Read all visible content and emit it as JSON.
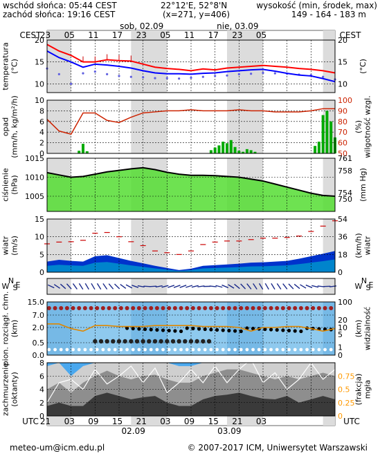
{
  "header": {
    "sunrise": "wschód słońca: 05:44 CEST",
    "sunset": "zachód słońca: 19:16 CEST",
    "coords": "22°12'E, 52°8'N",
    "grid_point": "(x=271,  y=406)",
    "altitude_title": "wysokość (min, środek, max)",
    "altitude_values": "149 - 164 - 183 m"
  },
  "top_axis": {
    "tz": "CEST",
    "hour_ticks": [
      "23",
      "05",
      "11",
      "17",
      "23",
      "05",
      "11",
      "17",
      "23",
      "05"
    ],
    "dates": [
      "sob, 02.09",
      "nie, 03.09"
    ]
  },
  "bottom_axis": {
    "tz": "UTC",
    "hour_ticks": [
      "21",
      "03",
      "09",
      "15",
      "21",
      "03",
      "09",
      "15",
      "21",
      "03"
    ],
    "dates": [
      "02.09",
      "03.09"
    ]
  },
  "footer": {
    "email": "meteo-um@icm.edu.pl",
    "copyright": "© 2007-2017 ICM, Uniwersytet Warszawski"
  },
  "colors": {
    "temp_max": "#ff0000",
    "temp_mean": "#0000ff",
    "dewpoint": "#6060e0",
    "precip": "#00aa00",
    "humidity": "#cc2200",
    "pressure_fill": "#55dd33",
    "pressure_line": "#000000",
    "wind_gust": "#cc0000",
    "wind_fill": "#0033cc",
    "cloud_base": "#a02020",
    "visibility": "#e08800",
    "fog": "#ff9900",
    "night_band": "#dcdcdc"
  },
  "chart_data": [
    {
      "type": "line",
      "panel": "temperature",
      "ylabel_left": "temperatura\n(°C)",
      "ylabel_right": "(°C)",
      "ylim": [
        8,
        20
      ],
      "yticks": [
        10,
        15,
        20
      ],
      "x_hours": [
        0,
        3,
        6,
        9,
        12,
        15,
        18,
        21,
        24,
        27,
        30,
        33,
        36,
        39,
        42,
        45,
        48,
        51,
        54,
        57,
        60,
        63,
        66,
        69,
        72
      ],
      "series": [
        {
          "key": "tmax",
          "values": [
            19.0,
            17.5,
            16.5,
            15.0,
            15.0,
            15.5,
            15.3,
            15.2,
            14.5,
            13.8,
            13.5,
            13.3,
            13.0,
            13.4,
            13.2,
            13.6,
            13.8,
            14.0,
            14.2,
            14.0,
            13.8,
            13.5,
            13.3,
            13.0,
            12.5
          ]
        },
        {
          "key": "tmean",
          "values": [
            17.5,
            16.0,
            15.0,
            13.8,
            14.5,
            14.3,
            14.0,
            13.6,
            13.0,
            12.5,
            12.3,
            12.3,
            12.2,
            12.4,
            12.5,
            12.8,
            13.0,
            13.2,
            13.3,
            12.9,
            12.4,
            12.0,
            11.8,
            11.2,
            10.5
          ]
        },
        {
          "key": "dewpoint",
          "values": [
            13.5,
            12.2,
            10.0,
            12.4,
            12.8,
            12.2,
            11.8,
            11.6,
            11.5,
            11.3,
            11.3,
            11.2,
            11.4,
            11.6,
            11.8,
            11.9,
            12.2,
            12.3,
            12.5,
            12.4,
            12.3,
            12.1,
            12.0,
            11.6,
            11.0
          ]
        }
      ]
    },
    {
      "type": "bar",
      "panel": "precipitation",
      "ylabel_left": "opad\n(mm/h, kg/m²/h)",
      "ylabel_right": "(%)\nwilgotność wzgl.",
      "ylim": [
        0,
        10
      ],
      "yticks": [
        0,
        2,
        4,
        6,
        8,
        10
      ],
      "y2lim": [
        50,
        100
      ],
      "y2ticks": [
        50,
        60,
        70,
        80,
        90,
        100
      ],
      "precip_x_hours": [
        8,
        9,
        10,
        41,
        42,
        43,
        44,
        45,
        46,
        47,
        48,
        49,
        50,
        51,
        52,
        67,
        68,
        69,
        70,
        71,
        72
      ],
      "precip_values": [
        0.5,
        1.8,
        0.4,
        0.6,
        1.1,
        1.5,
        2.2,
        1.9,
        2.5,
        1.2,
        0.5,
        0.3,
        0.8,
        0.6,
        0.3,
        1.4,
        2.2,
        7.2,
        8.0,
        6.0,
        3.0
      ],
      "humidity_x_hours": [
        0,
        3,
        6,
        9,
        12,
        15,
        18,
        21,
        24,
        27,
        30,
        33,
        36,
        39,
        42,
        45,
        48,
        51,
        54,
        57,
        60,
        63,
        66,
        69,
        72
      ],
      "humidity_values": [
        82,
        71,
        68,
        88,
        88,
        81,
        79,
        84,
        88,
        89,
        90,
        90,
        91,
        90,
        90,
        90,
        91,
        90,
        90,
        89,
        89,
        89,
        90,
        92,
        92
      ]
    },
    {
      "type": "area",
      "panel": "pressure",
      "ylabel_left": "ciśnienie\n(hPa)",
      "ylabel_right": "(mm Hg)",
      "ylim": [
        1001,
        1015
      ],
      "yticks": [
        1005,
        1010,
        1015
      ],
      "y2ticks": [
        750,
        754,
        758,
        761
      ],
      "x_hours": [
        0,
        3,
        6,
        9,
        12,
        15,
        18,
        21,
        24,
        27,
        30,
        33,
        36,
        39,
        42,
        45,
        48,
        51,
        54,
        57,
        60,
        63,
        66,
        69,
        72
      ],
      "values": [
        1011.2,
        1010.6,
        1010.0,
        1010.2,
        1010.8,
        1011.4,
        1011.8,
        1012.2,
        1012.5,
        1012.0,
        1011.3,
        1010.8,
        1010.5,
        1010.5,
        1010.4,
        1010.2,
        1010.0,
        1009.5,
        1009.0,
        1008.2,
        1007.4,
        1006.6,
        1005.8,
        1005.2,
        1005.0
      ]
    },
    {
      "type": "area",
      "panel": "wind",
      "ylabel_left": "wiatr\n(m/s)",
      "ylabel_right": "(km/h)\nwiatr",
      "ylim": [
        0,
        15
      ],
      "yticks": [
        0,
        5,
        10,
        15
      ],
      "y2ticks": [
        0,
        18,
        36,
        54
      ],
      "x_hours": [
        0,
        3,
        6,
        9,
        12,
        15,
        18,
        21,
        24,
        27,
        30,
        33,
        36,
        39,
        42,
        45,
        48,
        51,
        54,
        57,
        60,
        63,
        66,
        69,
        72
      ],
      "speed": [
        3.0,
        3.5,
        3.2,
        3.0,
        4.5,
        4.8,
        4.0,
        3.2,
        2.5,
        1.8,
        1.2,
        0.6,
        1.0,
        1.8,
        2.0,
        2.2,
        2.4,
        2.7,
        2.8,
        3.0,
        3.2,
        3.8,
        4.5,
        5.2,
        6.0
      ],
      "gust": [
        8.0,
        8.5,
        8.6,
        9.0,
        11.0,
        11.2,
        10.0,
        8.6,
        7.5,
        6.0,
        5.5,
        5.0,
        6.0,
        7.8,
        8.5,
        8.8,
        8.8,
        9.2,
        9.6,
        9.6,
        9.8,
        10.2,
        11.5,
        13.0,
        14.5
      ]
    },
    {
      "type": "scatter",
      "panel": "cloud",
      "ylabel_left": "pion. rozciągł. chm.\n(km)",
      "ylabel_right": "(km)\nwidzialność",
      "ylim": [
        0,
        15
      ],
      "yticks": [
        0.0,
        0.5,
        2.0,
        7.0,
        15.0
      ],
      "y2ticks": [
        0,
        1,
        5,
        10,
        20,
        100
      ],
      "visibility_x_hours": [
        0,
        3,
        6,
        9,
        12,
        15,
        18,
        21,
        24,
        27,
        30,
        33,
        36,
        39,
        42,
        45,
        48,
        51,
        54,
        57,
        60,
        63,
        66,
        69,
        72
      ],
      "visibility_values": [
        14,
        14,
        9,
        7,
        12,
        12,
        11,
        11,
        11,
        12,
        12,
        12,
        12,
        11,
        11,
        11,
        10,
        7,
        10,
        10,
        11,
        11,
        9,
        7,
        9
      ]
    },
    {
      "type": "area",
      "panel": "cloudiness",
      "ylabel_left": "zachmurzenie\n(oktanty)",
      "ylabel_right": "(frakcja)\nmgła",
      "ylim": [
        0,
        8
      ],
      "yticks": [
        0,
        2,
        4,
        6,
        8
      ],
      "y2ticks": [
        0,
        0.25,
        0.5,
        0.75
      ],
      "x_hours": [
        0,
        3,
        6,
        9,
        12,
        15,
        18,
        21,
        24,
        27,
        30,
        33,
        36,
        39,
        42,
        45,
        48,
        51,
        54,
        57,
        60,
        63,
        66,
        69,
        72
      ],
      "low": [
        1.5,
        2.0,
        1.5,
        1.5,
        3.0,
        3.5,
        3.0,
        2.5,
        2.8,
        3.0,
        2.0,
        1.5,
        1.5,
        2.5,
        3.0,
        3.2,
        3.5,
        3.0,
        2.6,
        2.5,
        3.0,
        2.0,
        2.5,
        3.0,
        2.5
      ],
      "mid": [
        4.0,
        5.0,
        3.5,
        5.0,
        6.0,
        6.8,
        6.0,
        5.5,
        6.0,
        6.2,
        5.5,
        5.0,
        5.0,
        6.0,
        6.5,
        7.0,
        7.0,
        6.5,
        6.0,
        5.5,
        6.0,
        5.5,
        6.0,
        6.5,
        6.0
      ],
      "high": [
        7.5,
        8.0,
        6.0,
        7.5,
        8.0,
        8.0,
        8.0,
        8.0,
        8.0,
        8.0,
        8.0,
        7.5,
        7.5,
        8.0,
        8.0,
        8.0,
        8.0,
        8.0,
        8.0,
        8.0,
        8.0,
        8.0,
        8.0,
        8.0,
        8.0
      ]
    }
  ]
}
